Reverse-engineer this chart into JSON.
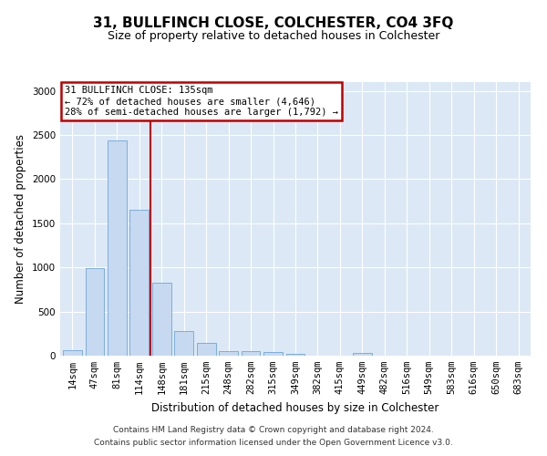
{
  "title1": "31, BULLFINCH CLOSE, COLCHESTER, CO4 3FQ",
  "title2": "Size of property relative to detached houses in Colchester",
  "xlabel": "Distribution of detached houses by size in Colchester",
  "ylabel": "Number of detached properties",
  "categories": [
    "14sqm",
    "47sqm",
    "81sqm",
    "114sqm",
    "148sqm",
    "181sqm",
    "215sqm",
    "248sqm",
    "282sqm",
    "315sqm",
    "349sqm",
    "382sqm",
    "415sqm",
    "449sqm",
    "482sqm",
    "516sqm",
    "549sqm",
    "583sqm",
    "616sqm",
    "650sqm",
    "683sqm"
  ],
  "values": [
    60,
    990,
    2440,
    1650,
    830,
    280,
    140,
    55,
    55,
    40,
    20,
    0,
    0,
    30,
    0,
    0,
    0,
    0,
    0,
    0,
    0
  ],
  "bar_color": "#c6d9f0",
  "bar_edge_color": "#5b9bd5",
  "bar_edge_width": 0.5,
  "redline_x": 3.5,
  "highlight_color": "#c00000",
  "annotation_lines": [
    "31 BULLFINCH CLOSE: 135sqm",
    "← 72% of detached houses are smaller (4,646)",
    "28% of semi-detached houses are larger (1,792) →"
  ],
  "annotation_box_color": "#c00000",
  "annotation_bg": "#ffffff",
  "ylim": [
    0,
    3100
  ],
  "yticks": [
    0,
    500,
    1000,
    1500,
    2000,
    2500,
    3000
  ],
  "footer1": "Contains HM Land Registry data © Crown copyright and database right 2024.",
  "footer2": "Contains public sector information licensed under the Open Government Licence v3.0.",
  "bg_color": "#dce8f5",
  "fig_bg": "#ffffff",
  "title1_fontsize": 11,
  "title2_fontsize": 9,
  "ylabel_fontsize": 8.5,
  "xlabel_fontsize": 8.5,
  "tick_fontsize": 7.5,
  "annotation_fontsize": 7.5,
  "footer_fontsize": 6.5
}
